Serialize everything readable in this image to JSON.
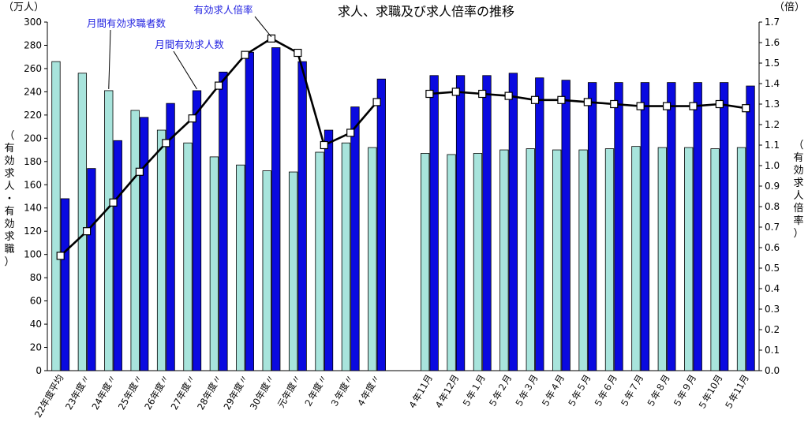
{
  "chart_data": {
    "type": "bar",
    "title": "求人、求職及び求人倍率の推移",
    "left_unit": "（万人）",
    "right_unit": "（倍）",
    "left_axis_label": [
      "（",
      "有",
      "効",
      "求",
      "人",
      "・",
      "有",
      "効",
      "求",
      "職",
      "）"
    ],
    "right_axis_label": [
      "（",
      "有",
      "効",
      "求",
      "人",
      "倍",
      "率",
      "）"
    ],
    "ylim_left": [
      0,
      300
    ],
    "ylim_right": [
      0.0,
      1.7
    ],
    "yticks_left": [
      "0",
      "20",
      "40",
      "60",
      "80",
      "100",
      "120",
      "140",
      "160",
      "180",
      "200",
      "220",
      "240",
      "260",
      "280",
      "300"
    ],
    "yticks_right": [
      "0.0",
      "0.1",
      "0.2",
      "0.3",
      "0.4",
      "0.5",
      "0.6",
      "0.7",
      "0.8",
      "0.9",
      "1.0",
      "1.1",
      "1.2",
      "1.3",
      "1.4",
      "1.5",
      "1.6",
      "1.7"
    ],
    "categories": [
      "22年度平均",
      "23年度〃",
      "24年度〃",
      "25年度〃",
      "26年度〃",
      "27年度〃",
      "28年度〃",
      "29年度〃",
      "30年度〃",
      "元年度〃",
      "２年度〃",
      "３年度〃",
      "４年度〃",
      "",
      "４年11月",
      "４年12月",
      "５年１月",
      "５年２月",
      "５年３月",
      "５年４月",
      "５年５月",
      "５年６月",
      "５年７月",
      "５年８月",
      "５年９月",
      "５年10月",
      "５年11月"
    ],
    "series": [
      {
        "name": "月間有効求職者数",
        "axis": "left",
        "kind": "bar",
        "color": "#a8e4dc",
        "values": [
          266,
          256,
          241,
          224,
          207,
          196,
          184,
          177,
          172,
          171,
          188,
          196,
          192,
          null,
          187,
          186,
          187,
          190,
          191,
          190,
          190,
          191,
          193,
          192,
          192,
          191,
          192
        ]
      },
      {
        "name": "月間有効求人数",
        "axis": "left",
        "kind": "bar",
        "color": "#0a0ae0",
        "values": [
          148,
          174,
          198,
          218,
          230,
          241,
          257,
          274,
          278,
          266,
          207,
          227,
          251,
          null,
          254,
          254,
          254,
          256,
          252,
          250,
          248,
          248,
          248,
          248,
          248,
          248,
          245
        ]
      },
      {
        "name": "有効求人倍率",
        "axis": "right",
        "kind": "line",
        "color": "#000000",
        "values": [
          0.56,
          0.68,
          0.82,
          0.97,
          1.11,
          1.23,
          1.39,
          1.54,
          1.62,
          1.55,
          1.1,
          1.16,
          1.31,
          null,
          1.35,
          1.36,
          1.35,
          1.34,
          1.32,
          1.32,
          1.31,
          1.3,
          1.29,
          1.29,
          1.29,
          1.3,
          1.28
        ]
      }
    ],
    "annotations": [
      {
        "text": "月間有効求職者数",
        "series": 0,
        "point": 2
      },
      {
        "text": "月間有効求人数",
        "series": 1,
        "point": 5
      },
      {
        "text": "有効求人倍率",
        "series": 2,
        "point": 8
      }
    ],
    "grid": false,
    "legend": "none"
  }
}
